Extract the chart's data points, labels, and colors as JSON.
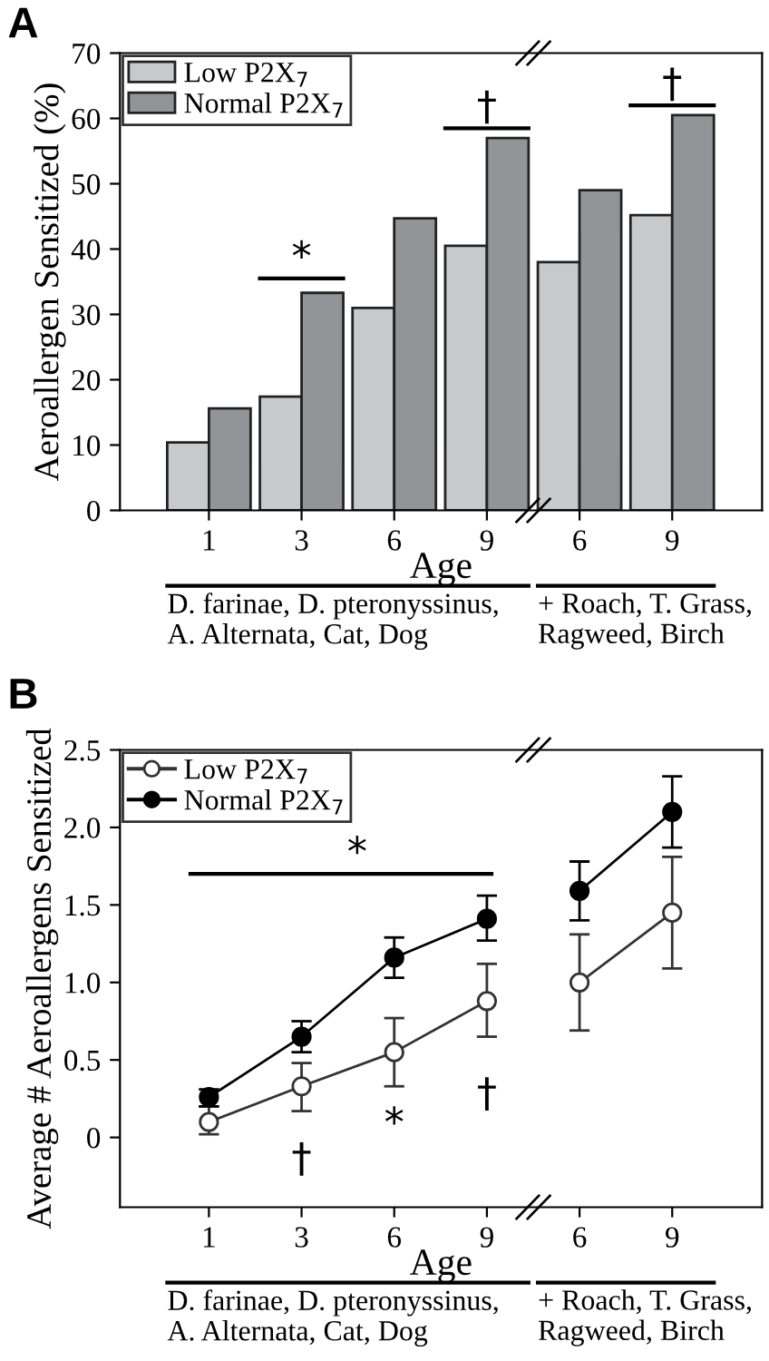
{
  "chart_data": [
    {
      "type": "bar",
      "title": "A",
      "xlabel": "Age",
      "ylabel": "Aeroallergen Sensitized (%)",
      "categories": [
        "1",
        "3",
        "6",
        "9",
        "6",
        "9"
      ],
      "series": [
        {
          "name": "Low P2X$_{7}$",
          "color": "#c8c9cb",
          "values": [
            10.4,
            17.4,
            31,
            40.5,
            38,
            45.2
          ]
        },
        {
          "name": "Normal P2X$_{7}$",
          "color": "#929497",
          "values": [
            15.6,
            33.3,
            44.7,
            57,
            49,
            60.5
          ]
        }
      ],
      "ylim": [
        0,
        70
      ],
      "yticks": [
        0,
        10,
        20,
        30,
        40,
        50,
        60,
        70
      ],
      "grid": false,
      "legend": "top left",
      "annotations": [
        "*",
        "†",
        "†",
        "D. farinae, D. pteronyssinus,\nA. Alternata, Cat, Dog",
        "+ Roach, T. Grass,\nRagweed, Birch"
      ]
    },
    {
      "type": "line",
      "title": "B",
      "xlabel": "Age",
      "ylabel": "Average # Aeroallergens Sensitized",
      "categories": [
        "1",
        "3",
        "6",
        "9",
        "6",
        "9"
      ],
      "series": [
        {
          "name": "Low P2X$_{7}$",
          "color": "#333333",
          "values": [
            0.1,
            0.33,
            0.55,
            0.88,
            1.0,
            1.45
          ],
          "errors": [
            [
              0.02,
              0.2
            ],
            [
              0.17,
              0.48
            ],
            [
              0.33,
              0.77
            ],
            [
              0.65,
              1.12
            ],
            [
              0.69,
              1.31
            ],
            [
              1.09,
              1.81
            ]
          ]
        },
        {
          "name": "Normal P2X$_{7}$",
          "color": "#000000",
          "values": [
            0.26,
            0.65,
            1.16,
            1.41,
            1.59,
            2.1
          ],
          "errors": [
            [
              0.2,
              0.31
            ],
            [
              0.55,
              0.75
            ],
            [
              1.03,
              1.29
            ],
            [
              1.27,
              1.56
            ],
            [
              1.4,
              1.78
            ],
            [
              1.87,
              2.33
            ]
          ]
        }
      ],
      "ylim": [
        -0.45,
        2.5
      ],
      "yticks": [
        {
          "value": 0,
          "label": "0"
        },
        0.5,
        {
          "value": 1,
          "label": "1.0"
        },
        1.5,
        {
          "value": 2,
          "label": "2.0"
        },
        2.5
      ],
      "grid": false,
      "legend": "top left",
      "marker": "circle",
      "line_style": "solid",
      "annotations": [
        "*",
        "†",
        "*",
        "†",
        "D. farinae, D. pteronyssinus,\nA. Alternata, Cat, Dog",
        "+ Roach, T. Grass,\nRagweed, Birch"
      ]
    }
  ]
}
